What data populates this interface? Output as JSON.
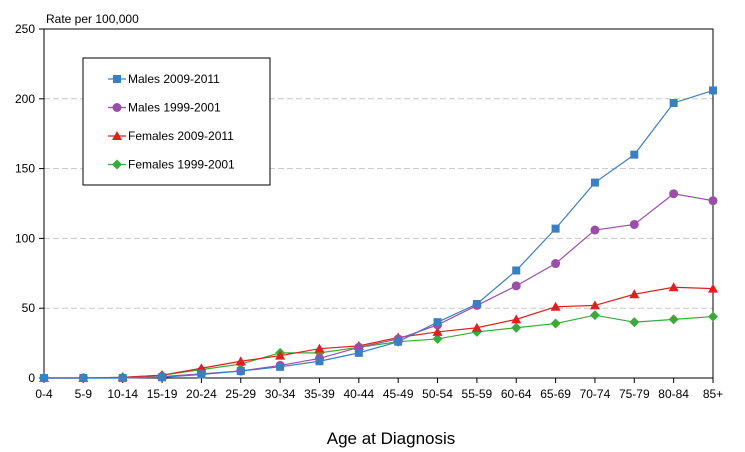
{
  "chart_data": {
    "type": "line",
    "title": "",
    "ylabel": "Rate per 100,000",
    "xlabel": "Age at Diagnosis",
    "ylim": [
      0,
      250
    ],
    "yticks": [
      0,
      50,
      100,
      150,
      200,
      250
    ],
    "categories": [
      "0-4",
      "5-9",
      "10-14",
      "15-19",
      "20-24",
      "25-29",
      "30-34",
      "35-39",
      "40-44",
      "45-49",
      "50-54",
      "55-59",
      "60-64",
      "65-69",
      "70-74",
      "75-79",
      "80-84",
      "85+"
    ],
    "legend_position": "top-left",
    "series": [
      {
        "name": "Males 2009-2011",
        "color": "#3a7fc1",
        "marker": "square",
        "values": [
          0,
          0,
          0,
          0.5,
          2.5,
          5,
          8,
          12,
          18,
          26,
          40,
          53,
          77,
          107,
          140,
          160,
          197,
          206
        ]
      },
      {
        "name": "Males 1999-2001",
        "color": "#9b4ea8",
        "marker": "circle",
        "values": [
          0,
          0,
          0,
          1,
          3,
          5,
          9,
          14,
          22,
          28,
          38,
          52,
          66,
          82,
          106,
          110,
          132,
          127
        ]
      },
      {
        "name": "Females 2009-2011",
        "color": "#e02020",
        "marker": "triangle",
        "values": [
          0,
          0,
          0.5,
          2,
          7,
          12,
          16,
          21,
          23,
          29,
          33,
          36,
          42,
          51,
          52,
          60,
          65,
          64
        ]
      },
      {
        "name": "Females 1999-2001",
        "color": "#3aaa3a",
        "marker": "diamond",
        "values": [
          0,
          0,
          0.5,
          2,
          6,
          10,
          18,
          18,
          22,
          26,
          28,
          33,
          36,
          39,
          45,
          40,
          42,
          44
        ]
      }
    ]
  }
}
